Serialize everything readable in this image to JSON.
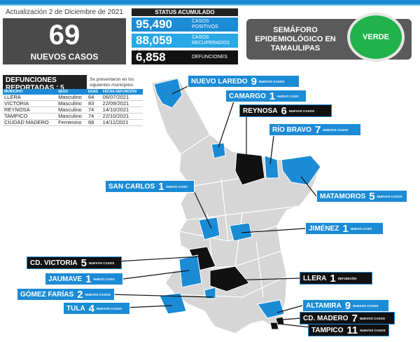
{
  "header": {
    "updated": "Actualización 2 de Diciembre de 2021"
  },
  "new_cases": {
    "value": "69",
    "label": "NUEVOS CASOS"
  },
  "status": {
    "title": "STATUS ACUMULADO",
    "positive": {
      "value": "95,490",
      "label": "CASOS POSITIVOS"
    },
    "recovered": {
      "value": "88,059",
      "label": "CASOS RECUPERADOS"
    },
    "deaths": {
      "value": "6,858",
      "label": "DEFUNCIONES"
    }
  },
  "traffic_light": {
    "title": "SEMÁFORO EPIDEMIOLÓGICO EN TAMAULIPAS",
    "level": "VERDE"
  },
  "deaths_reported": {
    "title": "DEFUNCIONES REPORTADAS : 5",
    "note": "Se presentaron en los siguientes municipios:",
    "columns": [
      "MUNICIPIO",
      "SEXO",
      "EDAD",
      "FECHA DEFUNCIÓN"
    ],
    "rows": [
      [
        "LLERA",
        "Masculino",
        "64",
        "06/07/2021"
      ],
      [
        "VICTORIA",
        "Masculino",
        "83",
        "22/09/2021"
      ],
      [
        "REYNOSA",
        "Masculino",
        "74",
        "14/10/2021"
      ],
      [
        "TAMPICO",
        "Masculino",
        "74",
        "22/10/2021"
      ],
      [
        "CIUDAD MADERO",
        "Femenino",
        "68",
        "14/11/2021"
      ]
    ]
  },
  "municipalities": [
    {
      "name": "NUEVO LAREDO",
      "count": "9",
      "unit": "NUEVOS CASOS"
    },
    {
      "name": "CAMARGO",
      "count": "1",
      "unit": "NUEVO CASO"
    },
    {
      "name": "REYNOSA",
      "count": "6",
      "unit": "NUEVOS CASOS"
    },
    {
      "name": "RÍO BRAVO",
      "count": "7",
      "unit": "NUEVOS CASOS"
    },
    {
      "name": "SAN CARLOS",
      "count": "1",
      "unit": "NUEVO CASO"
    },
    {
      "name": "MATAMOROS",
      "count": "5",
      "unit": "NUEVOS CASOS"
    },
    {
      "name": "JIMÉNEZ",
      "count": "1",
      "unit": "NUEVO CASO"
    },
    {
      "name": "CD. VICTORIA",
      "count": "5",
      "unit": "NUEVOS CASOS"
    },
    {
      "name": "JAUMAVE",
      "count": "1",
      "unit": "NUEVO CASO"
    },
    {
      "name": "LLERA",
      "count": "1",
      "unit": "DEFUNCIÓN"
    },
    {
      "name": "GÓMEZ FARÍAS",
      "count": "2",
      "unit": "NUEVOS CASOS"
    },
    {
      "name": "ALTAMIRA",
      "count": "9",
      "unit": "NUEVOS CASOS"
    },
    {
      "name": "TULA",
      "count": "4",
      "unit": "NUEVOS CASOS"
    },
    {
      "name": "CD. MADERO",
      "count": "7",
      "unit": "NUEVOS CASOS"
    },
    {
      "name": "TAMPICO",
      "count": "11",
      "unit": "NUEVOS CASOS"
    }
  ],
  "colors": {
    "blue": "#1b8bd6",
    "light_blue": "#29a8e6",
    "dark": "#111111",
    "gray": "#d0d0d0",
    "green": "#21b24b"
  }
}
